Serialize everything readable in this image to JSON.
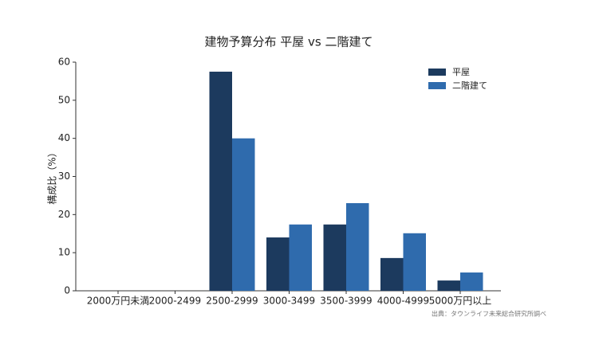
{
  "chart_data": {
    "type": "bar",
    "title": "建物予算分布 平屋 vs 二階建て",
    "ylabel": "構成比（%）",
    "categories": [
      "2000万円未満",
      "2000-2499",
      "2500-2999",
      "3000-3499",
      "3500-3999",
      "4000-4999",
      "5000万円以上"
    ],
    "series": [
      {
        "name": "平屋",
        "color": "#1c3a5e",
        "values": [
          0,
          0,
          57.5,
          14.0,
          17.4,
          8.6,
          2.7
        ]
      },
      {
        "name": "二階建て",
        "color": "#2f6bad",
        "values": [
          0,
          0,
          40.0,
          17.4,
          23.0,
          15.1,
          4.8
        ]
      }
    ],
    "ylim": [
      0,
      60
    ],
    "yticks": [
      0,
      10,
      20,
      30,
      40,
      50,
      60
    ],
    "legend": "upper right",
    "source": "出典：タウンライフ未来総合研究所調べ"
  }
}
